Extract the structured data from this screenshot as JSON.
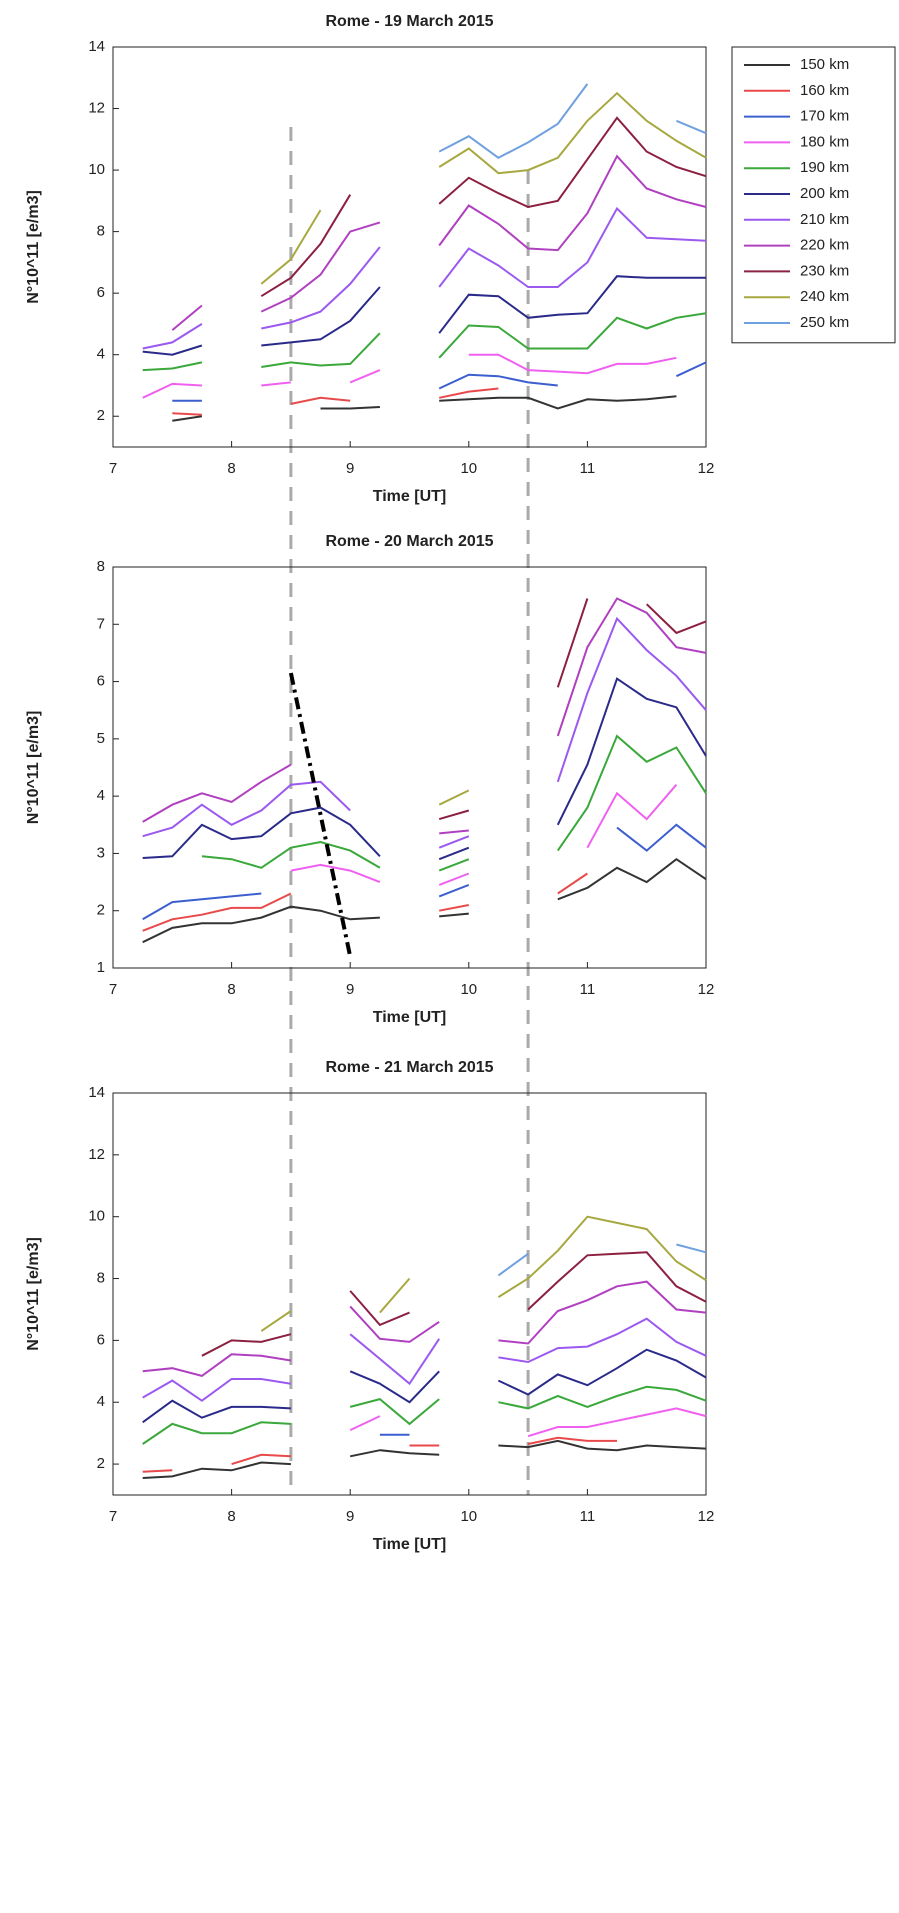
{
  "vlines": [
    8.5,
    10.5
  ],
  "chart_data": [
    {
      "type": "line",
      "title": "Rome - 19 March 2015",
      "xlabel": "Time [UT]",
      "ylabel": "N°10^11 [e/m3]",
      "x": [
        7.25,
        7.5,
        7.75,
        8,
        8.25,
        8.5,
        8.75,
        9,
        9.25,
        9.5,
        9.75,
        10,
        10.25,
        10.5,
        10.75,
        11,
        11.25,
        11.5,
        11.75,
        12
      ],
      "xlim": [
        7,
        12
      ],
      "xticks": [
        7,
        8,
        9,
        10,
        11,
        12
      ],
      "ylim": [
        1,
        14
      ],
      "yticks": [
        2,
        4,
        6,
        8,
        10,
        12,
        14
      ],
      "legend": "right",
      "series": [
        {
          "name": "150 km",
          "color": "#333333",
          "values": [
            null,
            1.85,
            2.0,
            null,
            null,
            null,
            2.25,
            2.25,
            2.3,
            null,
            2.5,
            2.55,
            2.6,
            2.6,
            2.25,
            2.55,
            2.5,
            2.55,
            2.65,
            null
          ]
        },
        {
          "name": "160 km",
          "color": "#e8494a",
          "values": [
            null,
            2.1,
            2.05,
            null,
            null,
            2.4,
            2.6,
            2.5,
            null,
            null,
            2.6,
            2.8,
            2.9,
            null,
            null,
            null,
            null,
            null,
            null,
            null
          ]
        },
        {
          "name": "170 km",
          "color": "#3c5fd0",
          "values": [
            null,
            2.5,
            2.5,
            null,
            null,
            null,
            null,
            null,
            null,
            null,
            2.9,
            3.35,
            3.3,
            3.1,
            3.0,
            null,
            null,
            null,
            3.3,
            3.75
          ]
        },
        {
          "name": "180 km",
          "color": "#f060f0",
          "values": [
            2.6,
            3.05,
            3.0,
            null,
            3.0,
            3.1,
            null,
            3.1,
            3.5,
            null,
            null,
            4.0,
            4.0,
            3.5,
            3.45,
            3.4,
            3.7,
            3.7,
            3.9,
            null
          ]
        },
        {
          "name": "190 km",
          "color": "#3aa83a",
          "values": [
            3.5,
            3.55,
            3.75,
            null,
            3.6,
            3.75,
            3.65,
            3.7,
            4.7,
            null,
            3.9,
            4.95,
            4.9,
            4.2,
            4.2,
            4.2,
            5.2,
            4.85,
            5.2,
            5.35
          ]
        },
        {
          "name": "200 km",
          "color": "#2a2a8a",
          "values": [
            4.1,
            4.0,
            4.3,
            null,
            4.3,
            4.4,
            4.5,
            5.1,
            6.2,
            null,
            4.7,
            5.95,
            5.9,
            5.2,
            5.3,
            5.35,
            6.55,
            6.5,
            6.5,
            6.5
          ]
        },
        {
          "name": "210 km",
          "color": "#9b59f0",
          "values": [
            4.2,
            4.4,
            5.0,
            null,
            4.85,
            5.05,
            5.4,
            6.3,
            7.5,
            null,
            6.2,
            7.45,
            6.9,
            6.2,
            6.2,
            7.0,
            8.75,
            7.8,
            7.75,
            7.7
          ]
        },
        {
          "name": "220 km",
          "color": "#b040c0",
          "values": [
            null,
            4.8,
            5.6,
            null,
            5.4,
            5.85,
            6.6,
            8.0,
            8.3,
            null,
            7.55,
            8.85,
            8.25,
            7.45,
            7.4,
            8.6,
            10.45,
            9.4,
            9.05,
            8.8
          ]
        },
        {
          "name": "230 km",
          "color": "#8b2040",
          "values": [
            null,
            null,
            null,
            null,
            5.9,
            6.5,
            7.6,
            9.2,
            null,
            null,
            8.9,
            9.75,
            9.25,
            8.8,
            9.0,
            10.35,
            11.7,
            10.6,
            10.1,
            9.8
          ]
        },
        {
          "name": "240 km",
          "color": "#a8a840",
          "values": [
            null,
            null,
            null,
            null,
            6.3,
            7.1,
            8.7,
            null,
            null,
            null,
            10.1,
            10.7,
            9.9,
            10.0,
            10.4,
            11.6,
            12.5,
            11.6,
            10.95,
            10.4
          ]
        },
        {
          "name": "250 km",
          "color": "#6fa0e0",
          "values": [
            null,
            null,
            null,
            null,
            null,
            null,
            null,
            null,
            null,
            null,
            10.6,
            11.1,
            10.4,
            10.9,
            11.5,
            12.8,
            null,
            null,
            11.6,
            11.2
          ]
        }
      ]
    },
    {
      "type": "line",
      "title": "Rome - 20 March 2015",
      "xlabel": "Time [UT]",
      "ylabel": "N°10^11 [e/m3]",
      "x": [
        7.25,
        7.5,
        7.75,
        8,
        8.25,
        8.5,
        8.75,
        9,
        9.25,
        9.5,
        9.75,
        10,
        10.25,
        10.5,
        10.75,
        11,
        11.25,
        11.5,
        11.75,
        12
      ],
      "xlim": [
        7,
        12
      ],
      "xticks": [
        7,
        8,
        9,
        10,
        11,
        12
      ],
      "ylim": [
        1,
        8
      ],
      "yticks": [
        1,
        2,
        3,
        4,
        5,
        6,
        7,
        8
      ],
      "trend_line": {
        "x": [
          8.5,
          9
        ],
        "y": [
          6.15,
          1.2
        ]
      },
      "series": [
        {
          "values": [
            1.45,
            1.7,
            1.78,
            1.78,
            1.88,
            2.07,
            2.0,
            1.85,
            1.88,
            null,
            1.9,
            1.95,
            null,
            null,
            2.2,
            2.4,
            2.75,
            2.5,
            2.9,
            2.55
          ]
        },
        {
          "values": [
            1.65,
            1.85,
            1.93,
            2.05,
            2.05,
            2.3,
            null,
            null,
            null,
            null,
            2.0,
            2.1,
            null,
            null,
            2.3,
            2.65,
            null,
            null,
            null,
            null
          ]
        },
        {
          "values": [
            1.85,
            2.15,
            2.2,
            2.25,
            2.3,
            null,
            null,
            null,
            null,
            null,
            2.25,
            2.45,
            null,
            null,
            null,
            null,
            3.45,
            3.05,
            3.5,
            3.1
          ]
        },
        {
          "values": [
            null,
            null,
            null,
            null,
            null,
            2.7,
            2.8,
            2.7,
            2.5,
            null,
            2.45,
            2.65,
            null,
            null,
            null,
            3.1,
            4.05,
            3.6,
            4.2,
            null
          ]
        },
        {
          "values": [
            null,
            null,
            2.95,
            2.9,
            2.75,
            3.1,
            3.2,
            3.05,
            2.75,
            null,
            2.7,
            2.9,
            null,
            null,
            3.05,
            3.8,
            5.05,
            4.6,
            4.85,
            4.05
          ]
        },
        {
          "values": [
            2.92,
            2.95,
            3.5,
            3.25,
            3.3,
            3.7,
            3.8,
            3.5,
            2.95,
            null,
            2.9,
            3.1,
            null,
            null,
            3.5,
            4.55,
            6.05,
            5.7,
            5.55,
            4.7
          ]
        },
        {
          "values": [
            3.3,
            3.45,
            3.85,
            3.5,
            3.75,
            4.2,
            4.25,
            3.75,
            null,
            null,
            3.1,
            3.3,
            null,
            null,
            4.25,
            5.8,
            7.1,
            6.55,
            6.1,
            5.5
          ]
        },
        {
          "values": [
            3.55,
            3.85,
            4.05,
            3.9,
            4.25,
            4.55,
            null,
            null,
            null,
            null,
            3.35,
            3.4,
            null,
            null,
            5.05,
            6.6,
            7.45,
            7.2,
            6.6,
            6.5
          ]
        },
        {
          "values": [
            null,
            null,
            null,
            null,
            null,
            null,
            null,
            null,
            null,
            null,
            3.6,
            3.75,
            null,
            null,
            5.9,
            7.45,
            null,
            7.35,
            6.85,
            7.05
          ]
        },
        {
          "values": [
            null,
            null,
            null,
            null,
            null,
            null,
            null,
            null,
            null,
            null,
            3.85,
            4.1,
            null,
            null,
            null,
            null,
            null,
            null,
            null,
            null
          ]
        },
        {
          "values": [
            null,
            null,
            null,
            null,
            null,
            null,
            null,
            null,
            null,
            null,
            null,
            null,
            null,
            null,
            null,
            null,
            null,
            null,
            null,
            null
          ]
        }
      ]
    },
    {
      "type": "line",
      "title": "Rome - 21 March 2015",
      "xlabel": "Time [UT]",
      "ylabel": "N°10^11 [e/m3]",
      "x": [
        7.25,
        7.5,
        7.75,
        8,
        8.25,
        8.5,
        8.75,
        9,
        9.25,
        9.5,
        9.75,
        10,
        10.25,
        10.5,
        10.75,
        11,
        11.25,
        11.5,
        11.75,
        12
      ],
      "xlim": [
        7,
        12
      ],
      "xticks": [
        7,
        8,
        9,
        10,
        11,
        12
      ],
      "ylim": [
        1,
        14
      ],
      "yticks": [
        2,
        4,
        6,
        8,
        10,
        12,
        14
      ],
      "series": [
        {
          "values": [
            1.55,
            1.6,
            1.85,
            1.8,
            2.05,
            2.0,
            null,
            2.25,
            2.45,
            2.35,
            2.3,
            null,
            2.6,
            2.55,
            2.75,
            2.5,
            2.45,
            2.6,
            2.55,
            2.5
          ]
        },
        {
          "values": [
            1.75,
            1.8,
            null,
            2.0,
            2.3,
            2.25,
            null,
            null,
            null,
            2.6,
            2.6,
            null,
            null,
            2.65,
            2.85,
            2.75,
            2.75,
            null,
            null,
            null
          ]
        },
        {
          "values": [
            null,
            null,
            null,
            null,
            null,
            null,
            null,
            null,
            2.95,
            2.95,
            null,
            null,
            null,
            null,
            null,
            null,
            null,
            null,
            null,
            null
          ]
        },
        {
          "values": [
            null,
            null,
            null,
            null,
            null,
            null,
            null,
            3.1,
            3.55,
            null,
            null,
            null,
            null,
            2.9,
            3.2,
            3.2,
            3.4,
            3.6,
            3.8,
            3.55
          ]
        },
        {
          "values": [
            2.65,
            3.3,
            3.0,
            3.0,
            3.35,
            3.3,
            null,
            3.85,
            4.1,
            3.3,
            4.1,
            null,
            4.0,
            3.8,
            4.2,
            3.85,
            4.2,
            4.5,
            4.4,
            4.05
          ]
        },
        {
          "values": [
            3.35,
            4.05,
            3.5,
            3.85,
            3.85,
            3.8,
            null,
            5.0,
            4.6,
            4.0,
            5.0,
            null,
            4.7,
            4.25,
            4.9,
            4.55,
            5.1,
            5.7,
            5.35,
            4.8
          ]
        },
        {
          "values": [
            4.15,
            4.7,
            4.05,
            4.75,
            4.75,
            4.6,
            null,
            6.2,
            5.4,
            4.6,
            6.05,
            null,
            5.45,
            5.3,
            5.75,
            5.8,
            6.2,
            6.7,
            5.95,
            5.5
          ]
        },
        {
          "values": [
            5.0,
            5.1,
            4.85,
            5.55,
            5.5,
            5.35,
            null,
            7.1,
            6.05,
            5.95,
            6.6,
            null,
            6.0,
            5.9,
            6.95,
            7.3,
            7.75,
            7.9,
            7.0,
            6.9
          ]
        },
        {
          "values": [
            null,
            null,
            5.5,
            6.0,
            5.95,
            6.2,
            null,
            7.6,
            6.5,
            6.9,
            null,
            null,
            null,
            7.0,
            7.9,
            8.75,
            8.8,
            8.85,
            7.75,
            7.25
          ]
        },
        {
          "values": [
            null,
            null,
            null,
            null,
            6.3,
            6.95,
            null,
            null,
            6.9,
            8.0,
            null,
            null,
            7.4,
            8.0,
            8.9,
            10.0,
            9.8,
            9.6,
            8.55,
            7.95
          ]
        },
        {
          "values": [
            null,
            null,
            null,
            null,
            null,
            null,
            null,
            null,
            null,
            null,
            null,
            null,
            8.1,
            8.8,
            null,
            null,
            null,
            null,
            9.1,
            8.85
          ]
        }
      ]
    }
  ]
}
